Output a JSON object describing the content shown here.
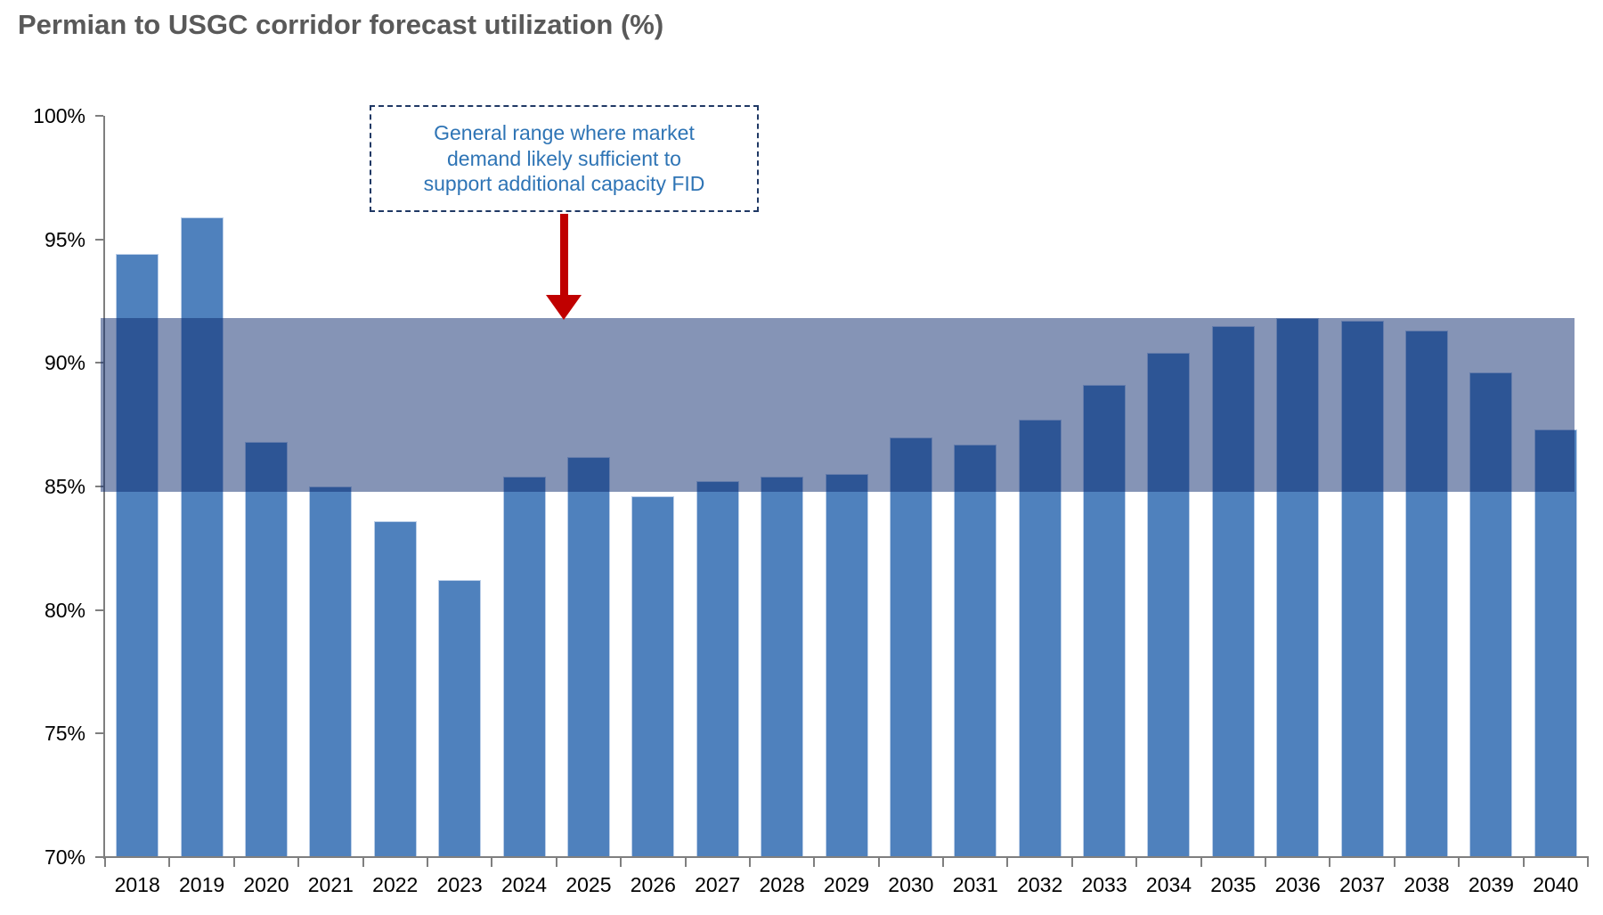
{
  "title": "Permian to USGC corridor forecast utilization (%)",
  "chart_data": {
    "type": "bar",
    "title": "Permian to USGC corridor forecast utilization (%)",
    "xlabel": "",
    "ylabel": "",
    "ylim": [
      70,
      100
    ],
    "ytick_labels": [
      "100%",
      "95%",
      "90%",
      "85%",
      "80%",
      "75%",
      "70%"
    ],
    "grid": false,
    "legend": null,
    "categories": [
      "2018",
      "2019",
      "2020",
      "2021",
      "2022",
      "2023",
      "2024",
      "2025",
      "2026",
      "2027",
      "2028",
      "2029",
      "2030",
      "2031",
      "2032",
      "2033",
      "2034",
      "2035",
      "2036",
      "2037",
      "2038",
      "2039",
      "2040"
    ],
    "values": [
      94.4,
      95.9,
      86.8,
      85.0,
      83.6,
      81.2,
      85.4,
      86.2,
      84.6,
      85.2,
      85.4,
      85.5,
      87.0,
      86.7,
      87.7,
      89.1,
      90.4,
      91.5,
      91.8,
      91.7,
      91.3,
      89.6,
      87.3
    ],
    "band": {
      "low": 84.8,
      "high": 91.8,
      "annotation_text": "General range where market demand likely sufficient to support additional capacity FID",
      "annotation_lines": [
        "General range where market",
        "demand likely sufficient to",
        "support additional capacity FID"
      ]
    },
    "colors": {
      "bar": "#4F81BD",
      "bar_border": "#BCCFE8",
      "band_overlay": "rgba(12,42,110,0.5)",
      "axis": "#7F7F7F",
      "title": "#595959",
      "tick_label": "#000000",
      "annotation_text": "#2E74B5",
      "annotation_border": "#1F3864",
      "arrow": "#C00000"
    }
  }
}
